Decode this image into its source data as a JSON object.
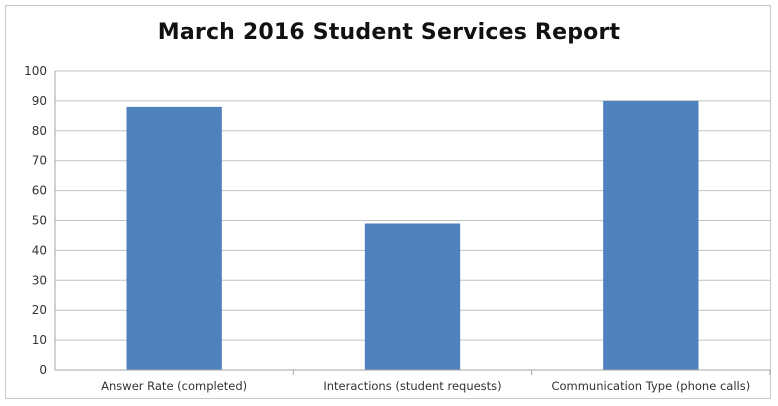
{
  "chart_data": {
    "type": "bar",
    "title": "March 2016 Student Services Report",
    "xlabel": "",
    "ylabel": "",
    "categories": [
      "Answer Rate (completed)",
      "Interactions (student requests)",
      "Communication Type (phone calls)"
    ],
    "values": [
      88,
      49,
      90
    ],
    "ylim": [
      0,
      100
    ],
    "yticks": [
      0,
      10,
      20,
      30,
      40,
      50,
      60,
      70,
      80,
      90,
      100
    ],
    "grid": true,
    "legend": "none",
    "colors": {
      "bar": "#4f81bd",
      "grid": "#c0c0c0",
      "axis": "#a6a6a6"
    }
  }
}
